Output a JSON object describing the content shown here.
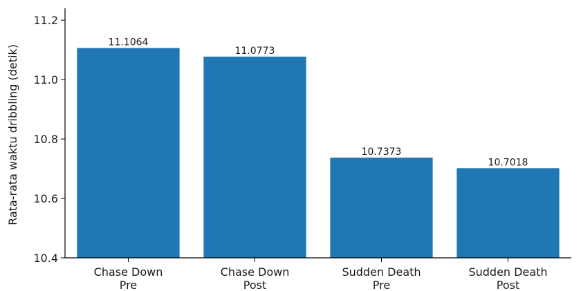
{
  "chart_data": {
    "type": "bar",
    "categories": [
      [
        "Chase Down",
        "Pre"
      ],
      [
        "Chase Down",
        "Post"
      ],
      [
        "Sudden Death",
        "Pre"
      ],
      [
        "Sudden Death",
        "Post"
      ]
    ],
    "values": [
      11.1064,
      11.0773,
      10.7373,
      10.7018
    ],
    "value_labels": [
      "11.1064",
      "11.0773",
      "10.7373",
      "10.7018"
    ],
    "title": "",
    "xlabel": "",
    "ylabel": "Rata-rata waktu dribbling (detik)",
    "ylim": [
      10.4,
      11.24
    ],
    "yticks": [
      10.4,
      10.6,
      10.8,
      11.0,
      11.2
    ],
    "ytick_labels": [
      "10.4",
      "10.6",
      "10.8",
      "11.0",
      "11.2"
    ],
    "grid": false,
    "legend": "none",
    "bar_color": "#1f77b4"
  }
}
